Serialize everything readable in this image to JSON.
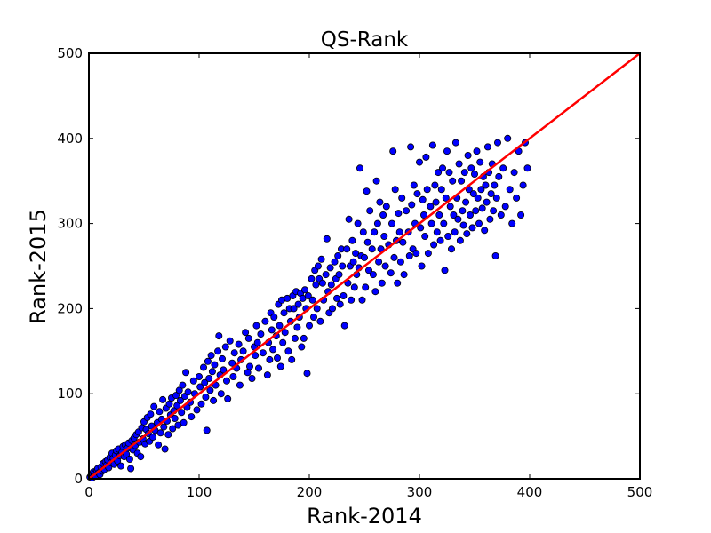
{
  "chart_data": {
    "type": "scatter",
    "title": "QS-Rank",
    "xlabel": "Rank-2014",
    "ylabel": "Rank-2015",
    "xlim": [
      0,
      500
    ],
    "ylim": [
      0,
      500
    ],
    "xticks": [
      0,
      100,
      200,
      300,
      400,
      500
    ],
    "yticks": [
      0,
      100,
      200,
      300,
      400,
      500
    ],
    "xtick_labels": [
      "0",
      "100",
      "200",
      "300",
      "400",
      "500"
    ],
    "ytick_labels": [
      "0",
      "100",
      "200",
      "300",
      "400",
      "500"
    ],
    "grid": false,
    "legend": "none",
    "reference_line": {
      "x": [
        0,
        500
      ],
      "y": [
        0,
        500
      ],
      "color": "#ff0000"
    },
    "point_color": "#0000ff",
    "point_edge_color": "#000000",
    "points": [
      [
        1,
        2
      ],
      [
        2,
        4
      ],
      [
        3,
        1
      ],
      [
        4,
        8
      ],
      [
        5,
        6
      ],
      [
        6,
        3
      ],
      [
        7,
        10
      ],
      [
        8,
        12
      ],
      [
        9,
        7
      ],
      [
        10,
        5
      ],
      [
        11,
        14
      ],
      [
        12,
        9
      ],
      [
        13,
        18
      ],
      [
        14,
        11
      ],
      [
        15,
        20
      ],
      [
        16,
        16
      ],
      [
        17,
        22
      ],
      [
        18,
        13
      ],
      [
        19,
        25
      ],
      [
        20,
        19
      ],
      [
        21,
        30
      ],
      [
        22,
        24
      ],
      [
        23,
        17
      ],
      [
        24,
        28
      ],
      [
        25,
        33
      ],
      [
        26,
        21
      ],
      [
        27,
        35
      ],
      [
        28,
        27
      ],
      [
        29,
        15
      ],
      [
        30,
        31
      ],
      [
        31,
        38
      ],
      [
        32,
        26
      ],
      [
        33,
        40
      ],
      [
        34,
        29
      ],
      [
        35,
        36
      ],
      [
        36,
        42
      ],
      [
        37,
        23
      ],
      [
        38,
        12
      ],
      [
        39,
        45
      ],
      [
        40,
        34
      ],
      [
        41,
        48
      ],
      [
        42,
        39
      ],
      [
        43,
        52
      ],
      [
        44,
        30
      ],
      [
        45,
        55
      ],
      [
        46,
        43
      ],
      [
        47,
        26
      ],
      [
        48,
        60
      ],
      [
        49,
        47
      ],
      [
        50,
        67
      ],
      [
        51,
        41
      ],
      [
        52,
        58
      ],
      [
        53,
        72
      ],
      [
        54,
        53
      ],
      [
        55,
        44
      ],
      [
        56,
        76
      ],
      [
        57,
        62
      ],
      [
        58,
        49
      ],
      [
        59,
        85
      ],
      [
        60,
        57
      ],
      [
        62,
        66
      ],
      [
        63,
        40
      ],
      [
        64,
        79
      ],
      [
        65,
        54
      ],
      [
        66,
        70
      ],
      [
        67,
        93
      ],
      [
        68,
        61
      ],
      [
        69,
        35
      ],
      [
        70,
        83
      ],
      [
        71,
        68
      ],
      [
        72,
        52
      ],
      [
        73,
        88
      ],
      [
        74,
        75
      ],
      [
        75,
        95
      ],
      [
        76,
        59
      ],
      [
        77,
        80
      ],
      [
        78,
        71
      ],
      [
        79,
        98
      ],
      [
        80,
        86
      ],
      [
        81,
        63
      ],
      [
        82,
        104
      ],
      [
        83,
        92
      ],
      [
        84,
        78
      ],
      [
        85,
        110
      ],
      [
        86,
        66
      ],
      [
        87,
        97
      ],
      [
        88,
        125
      ],
      [
        89,
        84
      ],
      [
        90,
        102
      ],
      [
        92,
        90
      ],
      [
        93,
        73
      ],
      [
        95,
        115
      ],
      [
        96,
        100
      ],
      [
        98,
        81
      ],
      [
        100,
        120
      ],
      [
        101,
        108
      ],
      [
        102,
        88
      ],
      [
        104,
        131
      ],
      [
        105,
        113
      ],
      [
        106,
        96
      ],
      [
        107,
        57
      ],
      [
        108,
        138
      ],
      [
        109,
        118
      ],
      [
        110,
        104
      ],
      [
        111,
        145
      ],
      [
        112,
        126
      ],
      [
        113,
        92
      ],
      [
        114,
        134
      ],
      [
        115,
        110
      ],
      [
        117,
        150
      ],
      [
        118,
        168
      ],
      [
        119,
        122
      ],
      [
        120,
        100
      ],
      [
        121,
        141
      ],
      [
        122,
        128
      ],
      [
        124,
        155
      ],
      [
        125,
        115
      ],
      [
        126,
        94
      ],
      [
        128,
        162
      ],
      [
        130,
        136
      ],
      [
        131,
        120
      ],
      [
        132,
        148
      ],
      [
        134,
        130
      ],
      [
        136,
        158
      ],
      [
        137,
        110
      ],
      [
        138,
        140
      ],
      [
        140,
        150
      ],
      [
        142,
        172
      ],
      [
        144,
        125
      ],
      [
        145,
        165
      ],
      [
        146,
        132
      ],
      [
        148,
        118
      ],
      [
        150,
        155
      ],
      [
        151,
        145
      ],
      [
        152,
        180
      ],
      [
        153,
        160
      ],
      [
        154,
        130
      ],
      [
        156,
        170
      ],
      [
        158,
        148
      ],
      [
        160,
        185
      ],
      [
        162,
        122
      ],
      [
        163,
        160
      ],
      [
        164,
        140
      ],
      [
        165,
        195
      ],
      [
        166,
        175
      ],
      [
        167,
        152
      ],
      [
        168,
        190
      ],
      [
        170,
        168
      ],
      [
        171,
        142
      ],
      [
        172,
        205
      ],
      [
        173,
        180
      ],
      [
        174,
        132
      ],
      [
        175,
        210
      ],
      [
        176,
        160
      ],
      [
        177,
        195
      ],
      [
        178,
        172
      ],
      [
        180,
        212
      ],
      [
        181,
        150
      ],
      [
        182,
        200
      ],
      [
        183,
        185
      ],
      [
        184,
        140
      ],
      [
        185,
        215
      ],
      [
        186,
        200
      ],
      [
        187,
        165
      ],
      [
        188,
        220
      ],
      [
        189,
        178
      ],
      [
        190,
        205
      ],
      [
        191,
        190
      ],
      [
        192,
        218
      ],
      [
        193,
        155
      ],
      [
        194,
        212
      ],
      [
        195,
        165
      ],
      [
        196,
        222
      ],
      [
        197,
        200
      ],
      [
        198,
        124
      ],
      [
        199,
        215
      ],
      [
        200,
        180
      ],
      [
        202,
        235
      ],
      [
        203,
        210
      ],
      [
        204,
        190
      ],
      [
        205,
        245
      ],
      [
        206,
        228
      ],
      [
        207,
        200
      ],
      [
        208,
        250
      ],
      [
        209,
        235
      ],
      [
        210,
        185
      ],
      [
        211,
        258
      ],
      [
        212,
        230
      ],
      [
        213,
        210
      ],
      [
        215,
        240
      ],
      [
        216,
        282
      ],
      [
        217,
        220
      ],
      [
        218,
        195
      ],
      [
        219,
        248
      ],
      [
        220,
        228
      ],
      [
        221,
        200
      ],
      [
        223,
        255
      ],
      [
        224,
        235
      ],
      [
        225,
        212
      ],
      [
        226,
        262
      ],
      [
        227,
        240
      ],
      [
        228,
        205
      ],
      [
        229,
        270
      ],
      [
        230,
        250
      ],
      [
        231,
        215
      ],
      [
        232,
        180
      ],
      [
        234,
        270
      ],
      [
        235,
        230
      ],
      [
        236,
        305
      ],
      [
        237,
        250
      ],
      [
        238,
        210
      ],
      [
        239,
        280
      ],
      [
        240,
        255
      ],
      [
        241,
        225
      ],
      [
        242,
        265
      ],
      [
        243,
        240
      ],
      [
        244,
        300
      ],
      [
        245,
        248
      ],
      [
        246,
        365
      ],
      [
        247,
        262
      ],
      [
        248,
        210
      ],
      [
        249,
        290
      ],
      [
        250,
        260
      ],
      [
        251,
        225
      ],
      [
        252,
        338
      ],
      [
        253,
        278
      ],
      [
        254,
        245
      ],
      [
        255,
        315
      ],
      [
        257,
        270
      ],
      [
        258,
        240
      ],
      [
        259,
        290
      ],
      [
        260,
        220
      ],
      [
        261,
        350
      ],
      [
        262,
        300
      ],
      [
        263,
        255
      ],
      [
        264,
        325
      ],
      [
        265,
        270
      ],
      [
        266,
        230
      ],
      [
        267,
        310
      ],
      [
        268,
        285
      ],
      [
        269,
        250
      ],
      [
        270,
        320
      ],
      [
        272,
        275
      ],
      [
        274,
        242
      ],
      [
        275,
        300
      ],
      [
        276,
        385
      ],
      [
        277,
        260
      ],
      [
        278,
        340
      ],
      [
        279,
        280
      ],
      [
        280,
        230
      ],
      [
        281,
        312
      ],
      [
        282,
        290
      ],
      [
        283,
        255
      ],
      [
        284,
        330
      ],
      [
        285,
        278
      ],
      [
        286,
        240
      ],
      [
        288,
        315
      ],
      [
        290,
        290
      ],
      [
        291,
        262
      ],
      [
        292,
        390
      ],
      [
        293,
        322
      ],
      [
        294,
        270
      ],
      [
        295,
        345
      ],
      [
        296,
        300
      ],
      [
        297,
        265
      ],
      [
        298,
        335
      ],
      [
        300,
        372
      ],
      [
        301,
        295
      ],
      [
        302,
        250
      ],
      [
        303,
        328
      ],
      [
        304,
        310
      ],
      [
        305,
        285
      ],
      [
        306,
        378
      ],
      [
        307,
        340
      ],
      [
        308,
        265
      ],
      [
        310,
        320
      ],
      [
        311,
        300
      ],
      [
        312,
        392
      ],
      [
        313,
        275
      ],
      [
        314,
        345
      ],
      [
        315,
        325
      ],
      [
        316,
        290
      ],
      [
        317,
        360
      ],
      [
        318,
        310
      ],
      [
        319,
        280
      ],
      [
        320,
        340
      ],
      [
        321,
        365
      ],
      [
        322,
        300
      ],
      [
        323,
        245
      ],
      [
        324,
        330
      ],
      [
        325,
        385
      ],
      [
        326,
        285
      ],
      [
        327,
        360
      ],
      [
        328,
        320
      ],
      [
        329,
        270
      ],
      [
        330,
        350
      ],
      [
        331,
        310
      ],
      [
        332,
        290
      ],
      [
        333,
        395
      ],
      [
        334,
        330
      ],
      [
        335,
        305
      ],
      [
        336,
        370
      ],
      [
        337,
        280
      ],
      [
        338,
        350
      ],
      [
        339,
        315
      ],
      [
        340,
        298
      ],
      [
        341,
        360
      ],
      [
        342,
        325
      ],
      [
        343,
        288
      ],
      [
        344,
        380
      ],
      [
        345,
        340
      ],
      [
        346,
        310
      ],
      [
        347,
        365
      ],
      [
        348,
        295
      ],
      [
        349,
        335
      ],
      [
        350,
        358
      ],
      [
        351,
        315
      ],
      [
        352,
        385
      ],
      [
        353,
        330
      ],
      [
        354,
        300
      ],
      [
        355,
        372
      ],
      [
        356,
        340
      ],
      [
        357,
        318
      ],
      [
        358,
        355
      ],
      [
        359,
        292
      ],
      [
        360,
        345
      ],
      [
        361,
        325
      ],
      [
        362,
        390
      ],
      [
        363,
        360
      ],
      [
        364,
        305
      ],
      [
        365,
        335
      ],
      [
        366,
        370
      ],
      [
        367,
        315
      ],
      [
        368,
        345
      ],
      [
        369,
        262
      ],
      [
        370,
        330
      ],
      [
        371,
        395
      ],
      [
        372,
        355
      ],
      [
        374,
        310
      ],
      [
        376,
        365
      ],
      [
        378,
        320
      ],
      [
        380,
        400
      ],
      [
        382,
        340
      ],
      [
        384,
        300
      ],
      [
        386,
        360
      ],
      [
        388,
        330
      ],
      [
        390,
        385
      ],
      [
        392,
        310
      ],
      [
        394,
        345
      ],
      [
        396,
        395
      ],
      [
        398,
        365
      ]
    ]
  }
}
